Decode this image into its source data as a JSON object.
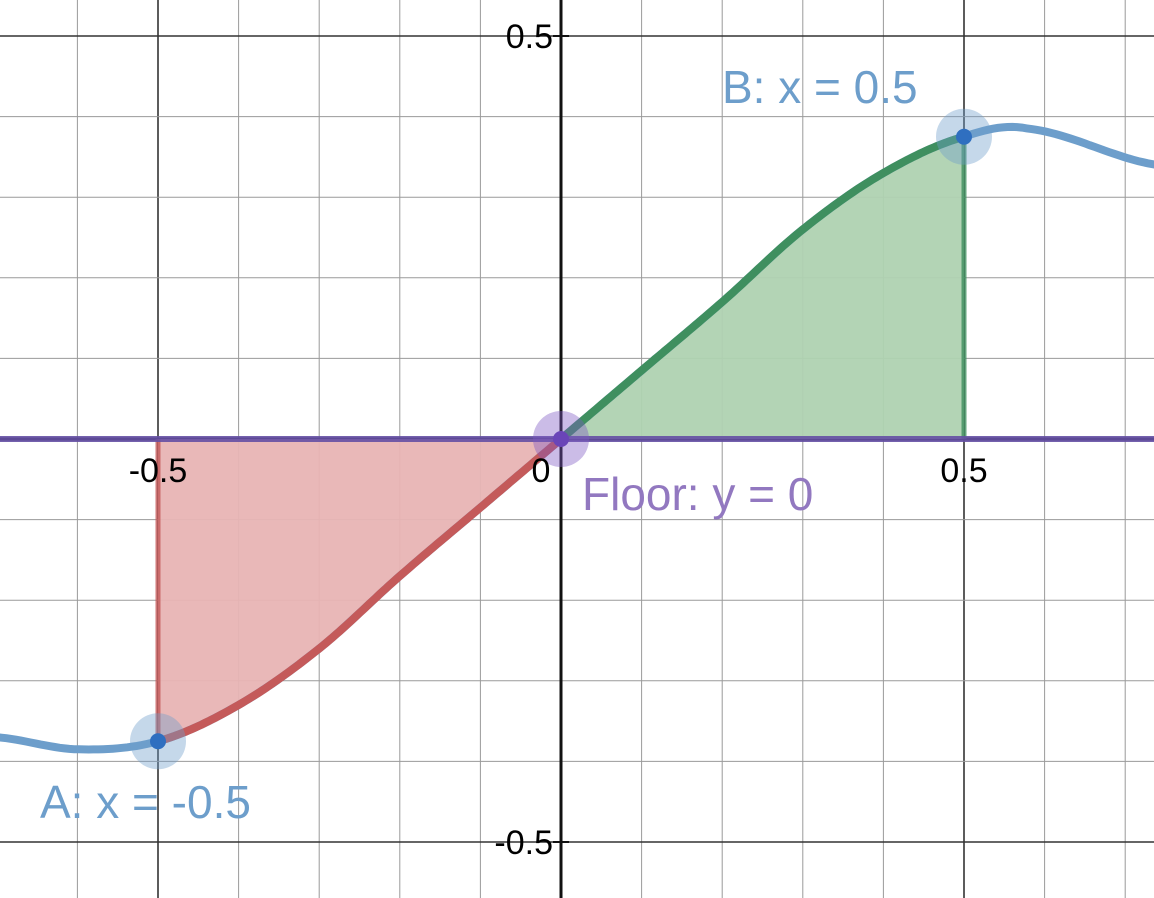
{
  "chart_data": {
    "type": "line",
    "title": "",
    "xlabel": "",
    "ylabel": "",
    "xlim": [
      -0.5,
      0.5
    ],
    "ylim": [
      -0.5,
      0.5
    ],
    "grid": true,
    "x_ticks": [
      "-0.5",
      "0",
      "0.5"
    ],
    "y_ticks": [
      "0.5",
      "-0.5"
    ],
    "curve": {
      "color": "#6d9ecb",
      "samples": [
        {
          "x": -0.7,
          "y": -0.37
        },
        {
          "x": -0.6,
          "y": -0.385
        },
        {
          "x": -0.5,
          "y": -0.375
        },
        {
          "x": -0.4,
          "y": -0.33
        },
        {
          "x": -0.3,
          "y": -0.26
        },
        {
          "x": -0.2,
          "y": -0.17
        },
        {
          "x": -0.1,
          "y": -0.085
        },
        {
          "x": 0.0,
          "y": 0.0
        },
        {
          "x": 0.1,
          "y": 0.085
        },
        {
          "x": 0.2,
          "y": 0.17
        },
        {
          "x": 0.3,
          "y": 0.26
        },
        {
          "x": 0.4,
          "y": 0.33
        },
        {
          "x": 0.5,
          "y": 0.375
        },
        {
          "x": 0.58,
          "y": 0.385
        },
        {
          "x": 0.74,
          "y": 0.34
        }
      ]
    },
    "regions": [
      {
        "from": -0.5,
        "to": 0,
        "color": "#c45a5a",
        "fill": "#e8b4b4"
      },
      {
        "from": 0,
        "to": 0.5,
        "color": "#3f8f5f",
        "fill": "#afd2b1"
      }
    ],
    "floor": {
      "y": 0,
      "color": "#6650a5",
      "label": "Floor: y = 0",
      "label_color": "#9278c0"
    },
    "points": [
      {
        "x": -0.5,
        "y": -0.375,
        "label": "A: x = -0.5",
        "color": "#6d9ecb"
      },
      {
        "x": 0.5,
        "y": 0.375,
        "label": "B: x = 0.5",
        "color": "#6d9ecb"
      },
      {
        "x": 0,
        "y": 0,
        "label": "",
        "color": "#7e57c2"
      }
    ]
  }
}
